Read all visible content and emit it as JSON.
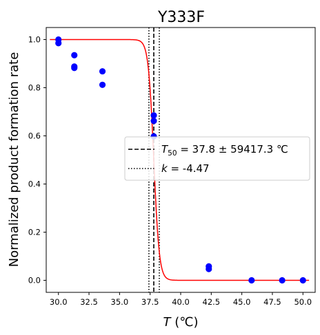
{
  "chart_data": {
    "type": "scatter",
    "title": "Y333F",
    "xlabel": {
      "italic": "T",
      "rest": " (℃)"
    },
    "ylabel": "Normalized product formation rate",
    "xlim": [
      29.0,
      51.0
    ],
    "ylim": [
      -0.05,
      1.05
    ],
    "xticks": [
      "30.0",
      "32.5",
      "35.0",
      "37.5",
      "40.0",
      "42.5",
      "45.0",
      "47.5",
      "50.0"
    ],
    "xtick_values": [
      30.0,
      32.5,
      35.0,
      37.5,
      40.0,
      42.5,
      45.0,
      47.5,
      50.0
    ],
    "yticks": [
      "0.0",
      "0.2",
      "0.4",
      "0.6",
      "0.8",
      "1.0"
    ],
    "ytick_values": [
      0.0,
      0.2,
      0.4,
      0.6,
      0.8,
      1.0
    ],
    "points": [
      {
        "x": 30.0,
        "y": 1.0
      },
      {
        "x": 30.0,
        "y": 0.985
      },
      {
        "x": 31.3,
        "y": 0.935
      },
      {
        "x": 31.3,
        "y": 0.888
      },
      {
        "x": 31.3,
        "y": 0.882
      },
      {
        "x": 33.6,
        "y": 0.868
      },
      {
        "x": 33.6,
        "y": 0.812
      },
      {
        "x": 37.8,
        "y": 0.685
      },
      {
        "x": 37.8,
        "y": 0.662
      },
      {
        "x": 37.8,
        "y": 0.598
      },
      {
        "x": 42.3,
        "y": 0.058
      },
      {
        "x": 42.3,
        "y": 0.047
      },
      {
        "x": 45.8,
        "y": 0.0
      },
      {
        "x": 48.3,
        "y": 0.0
      },
      {
        "x": 50.0,
        "y": 0.0
      }
    ],
    "fit": {
      "T50": 37.8,
      "k": -4.47,
      "x_range": [
        29.3,
        50.5
      ]
    },
    "vlines": [
      {
        "x": 37.8,
        "style": "dashed"
      },
      {
        "x": 37.4,
        "style": "dotted"
      },
      {
        "x": 38.25,
        "style": "dotted"
      }
    ],
    "legend": {
      "position": "center-right",
      "entries": [
        {
          "style": "dashed",
          "label_sym": "T",
          "label_sub": "50",
          "label_rest": " = 37.8 ± 59417.3 ℃"
        },
        {
          "style": "dotted",
          "label_sym": "k",
          "label_sub": "",
          "label_rest": " = -4.47"
        }
      ]
    },
    "colors": {
      "points": "#0000ff",
      "fit": "#ff0000",
      "lines": "#000000"
    }
  }
}
